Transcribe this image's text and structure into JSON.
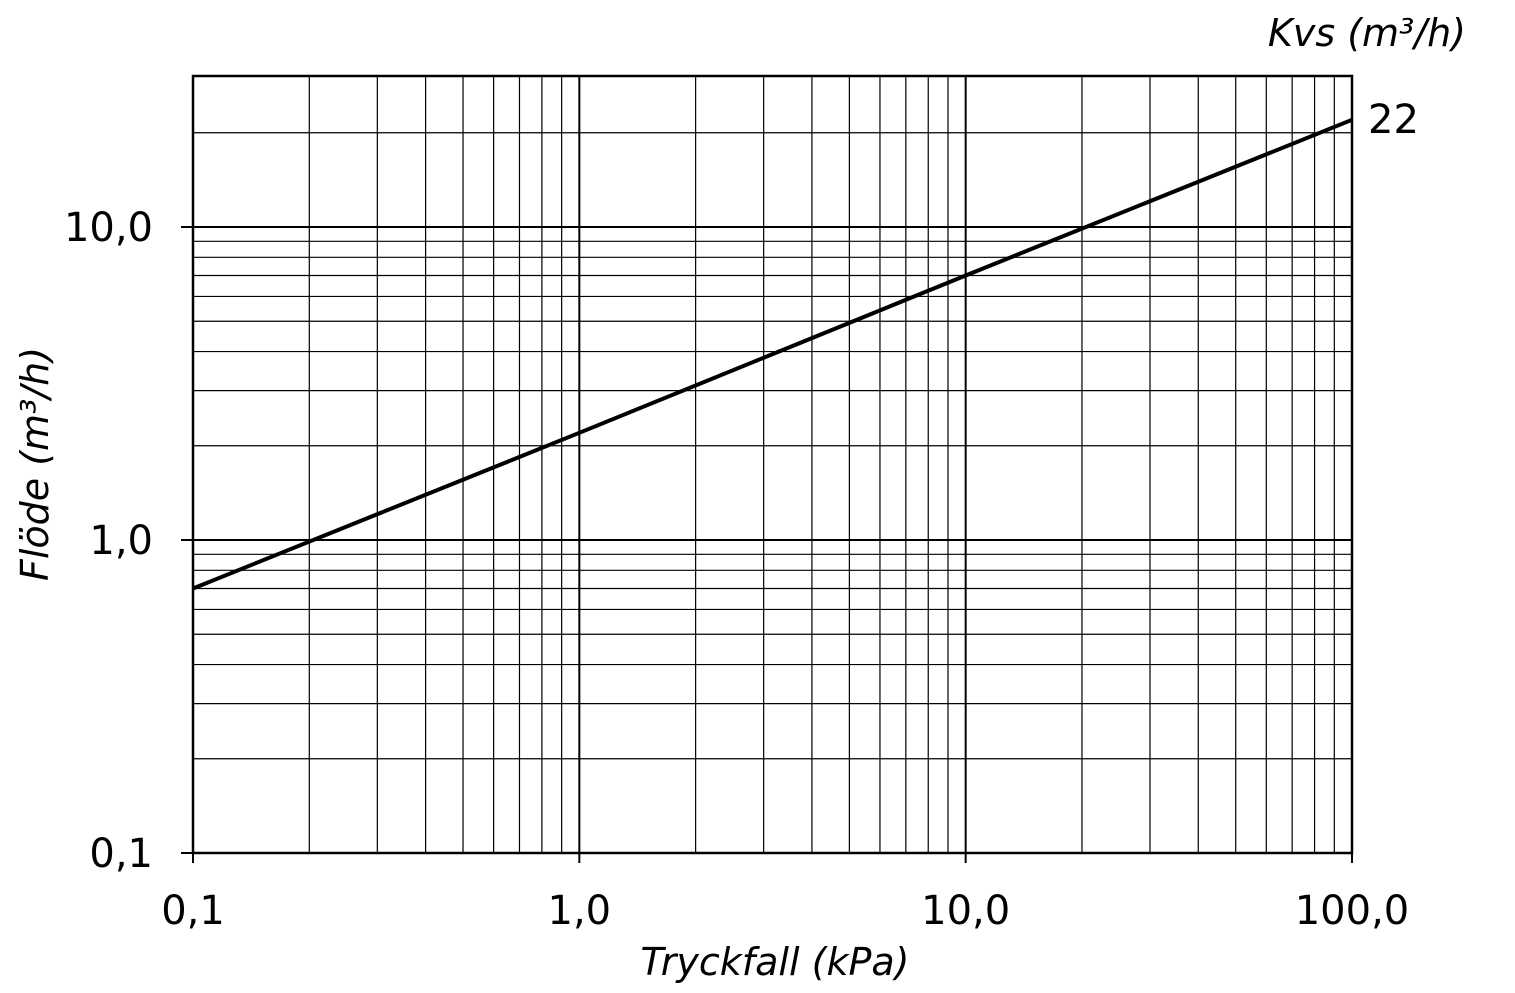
{
  "chart_data": {
    "type": "line",
    "title": "",
    "xlabel": "Tryckfall (kPa)",
    "ylabel": "Flöde (m³/h)",
    "x_scale": "log",
    "y_scale": "log",
    "xlim": [
      0.1,
      100.0
    ],
    "ylim": [
      0.1,
      30.0
    ],
    "grid": true,
    "x_ticks": [
      {
        "value": 0.1,
        "label": "0,1"
      },
      {
        "value": 1.0,
        "label": "1,0"
      },
      {
        "value": 10.0,
        "label": "10,0"
      },
      {
        "value": 100.0,
        "label": "100,0"
      }
    ],
    "y_ticks": [
      {
        "value": 0.1,
        "label": "0,1"
      },
      {
        "value": 1.0,
        "label": "1,0"
      },
      {
        "value": 10.0,
        "label": "10,0"
      }
    ],
    "series_label_header": "Kvs (m³/h)",
    "series": [
      {
        "name": "22",
        "x": [
          0.1,
          1.0,
          10.0,
          100.0
        ],
        "y": [
          0.7,
          2.2,
          7.0,
          22.0
        ]
      }
    ]
  }
}
